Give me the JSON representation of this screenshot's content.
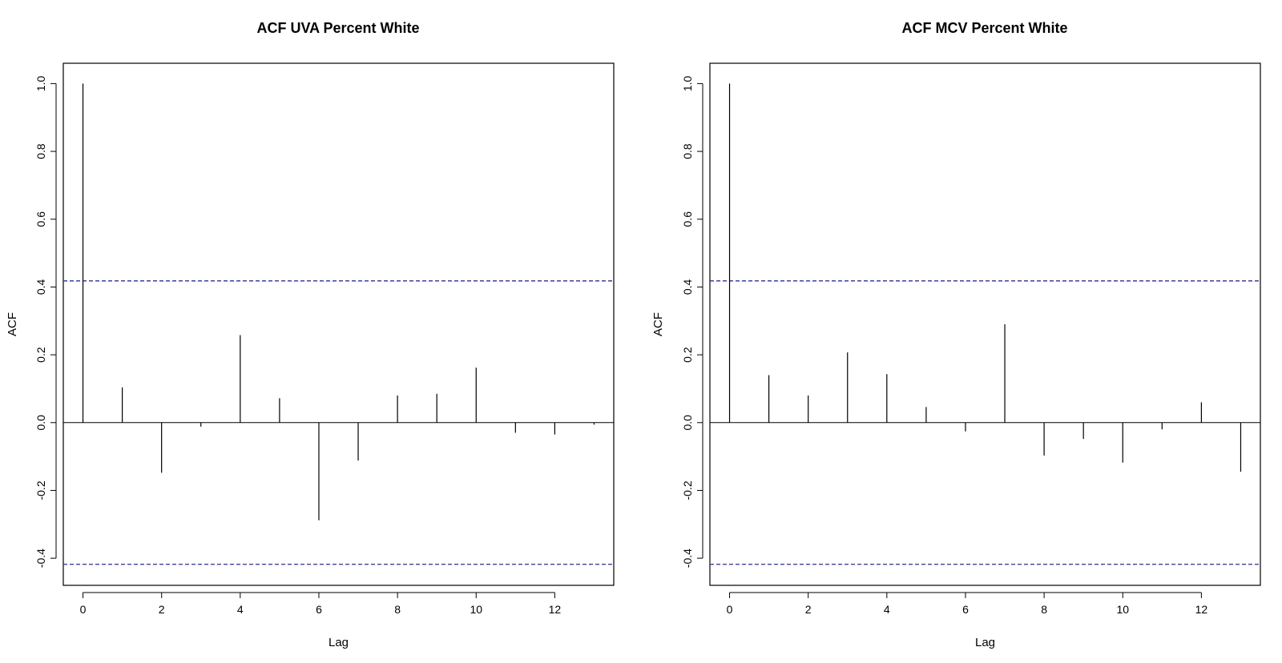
{
  "chart_data": [
    {
      "type": "bar",
      "title": "ACF UVA Percent White",
      "xlabel": "Lag",
      "ylabel": "ACF",
      "xlim": [
        -0.5,
        13.5
      ],
      "ylim": [
        -0.48,
        1.06
      ],
      "x_ticks": [
        0,
        2,
        4,
        6,
        8,
        10,
        12
      ],
      "y_ticks": [
        -0.4,
        -0.2,
        0.0,
        0.2,
        0.4,
        0.6,
        0.8,
        1.0
      ],
      "x_tick_labels": [
        "0",
        "2",
        "4",
        "6",
        "8",
        "10",
        "12"
      ],
      "y_tick_labels": [
        "-0.4",
        "-0.2",
        "0.0",
        "0.2",
        "0.4",
        "0.6",
        "0.8",
        "1.0"
      ],
      "lags": [
        0,
        1,
        2,
        3,
        4,
        5,
        6,
        7,
        8,
        9,
        10,
        11,
        12,
        13
      ],
      "values": [
        1.0,
        0.104,
        -0.148,
        -0.012,
        0.258,
        0.072,
        -0.288,
        -0.112,
        0.08,
        0.085,
        0.162,
        -0.03,
        -0.035,
        -0.006
      ],
      "confidence_bounds": [
        0.418,
        -0.418
      ],
      "bound_color": "#2b2f8c",
      "bar_color": "#000000",
      "zero_line": true,
      "grid": false
    },
    {
      "type": "bar",
      "title": "ACF MCV Percent White",
      "xlabel": "Lag",
      "ylabel": "ACF",
      "xlim": [
        -0.5,
        13.5
      ],
      "ylim": [
        -0.48,
        1.06
      ],
      "x_ticks": [
        0,
        2,
        4,
        6,
        8,
        10,
        12
      ],
      "y_ticks": [
        -0.4,
        -0.2,
        0.0,
        0.2,
        0.4,
        0.6,
        0.8,
        1.0
      ],
      "x_tick_labels": [
        "0",
        "2",
        "4",
        "6",
        "8",
        "10",
        "12"
      ],
      "y_tick_labels": [
        "-0.4",
        "-0.2",
        "0.0",
        "0.2",
        "0.4",
        "0.6",
        "0.8",
        "1.0"
      ],
      "lags": [
        0,
        1,
        2,
        3,
        4,
        5,
        6,
        7,
        8,
        9,
        10,
        11,
        12,
        13
      ],
      "values": [
        1.0,
        0.14,
        0.08,
        0.207,
        0.143,
        0.046,
        -0.026,
        0.29,
        -0.097,
        -0.048,
        -0.118,
        -0.02,
        0.06,
        -0.145
      ],
      "confidence_bounds": [
        0.418,
        -0.418
      ],
      "bound_color": "#2b2f8c",
      "bar_color": "#000000",
      "zero_line": true,
      "grid": false
    }
  ]
}
